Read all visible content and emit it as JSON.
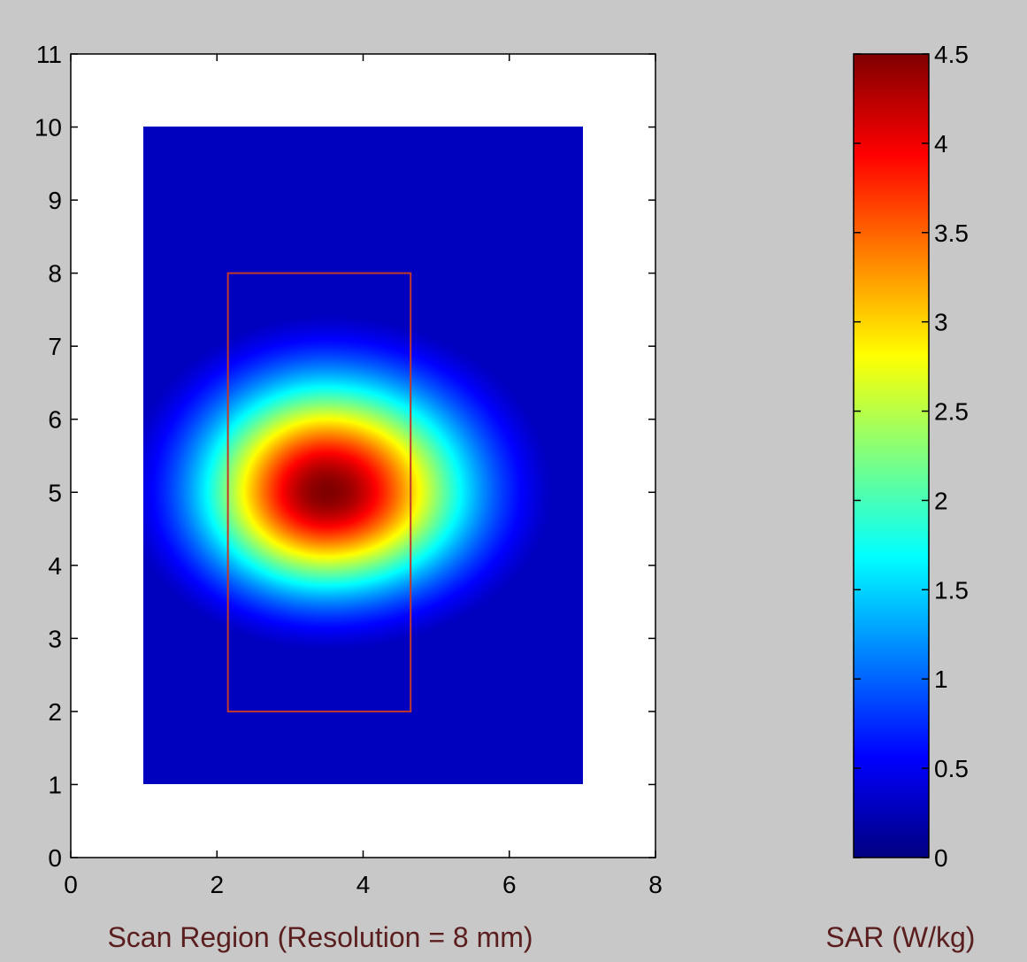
{
  "chart_data": [
    {
      "type": "heatmap",
      "xlabel": "Scan Region (Resolution = 8 mm)",
      "xlim": [
        0,
        8
      ],
      "ylim": [
        0,
        11
      ],
      "x_ticks": [
        "0",
        "2",
        "4",
        "6",
        "8"
      ],
      "y_ticks": [
        "0",
        "1",
        "2",
        "3",
        "4",
        "5",
        "6",
        "7",
        "8",
        "9",
        "10",
        "11"
      ],
      "scan_area": {
        "x": [
          1,
          7
        ],
        "y": [
          1,
          10
        ]
      },
      "peak": {
        "x": 3.5,
        "y": 5,
        "value": 4.5
      },
      "highlight_rect": {
        "x": [
          2.15,
          4.65
        ],
        "y": [
          2,
          8
        ]
      },
      "colormap": "jet",
      "label_color": "#5a1e1e",
      "rect_color": "#c0392b"
    },
    {
      "type": "colorbar",
      "label": "SAR (W/kg)",
      "lim": [
        0,
        4.5
      ],
      "ticks": [
        "0",
        "0.5",
        "1",
        "1.5",
        "2",
        "2.5",
        "3",
        "3.5",
        "4",
        "4.5"
      ],
      "colormap": "jet"
    }
  ]
}
